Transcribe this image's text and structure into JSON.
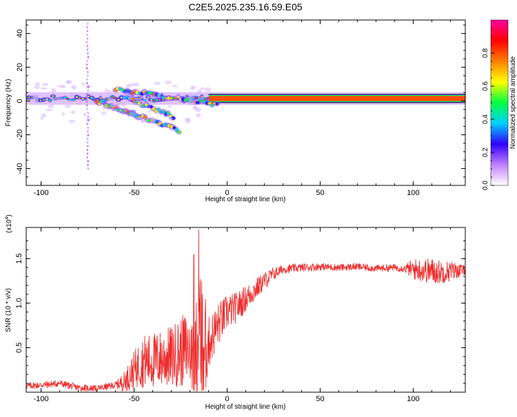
{
  "title": "C2E5.2025.235.16.59.E05",
  "chart_data": [
    {
      "type": "heatmap",
      "name": "spectrogram",
      "xlabel": "Height of straight line (km)",
      "ylabel": "Frequency (Hz)",
      "xlim": [
        -108,
        128
      ],
      "ylim": [
        -50,
        48
      ],
      "xticks": [
        -100,
        -50,
        0,
        50,
        100
      ],
      "yticks": [
        -40,
        -20,
        0,
        20,
        40
      ],
      "colorbar": {
        "label": "Normalized spectral amplitude",
        "range": [
          0,
          1
        ],
        "ticks": [
          0.0,
          0.2,
          0.4,
          0.6,
          0.8
        ],
        "colors": [
          "#ffffff",
          "#c080ff",
          "#3000ff",
          "#00d0ff",
          "#00ff40",
          "#ffff00",
          "#ff8000",
          "#ff0000",
          "#ff00a0"
        ]
      },
      "band": {
        "freq_center_hz": 1.5,
        "freq_half_width_hz": 2.5,
        "x_range": [
          -108,
          128
        ]
      },
      "curves": [
        {
          "from_x": -60,
          "to_x": -5,
          "start_freq": 7,
          "end_freq": -2
        },
        {
          "from_x": -70,
          "to_x": -25,
          "start_freq": 0,
          "end_freq": -18
        },
        {
          "from_x": -55,
          "to_x": -28,
          "start_freq": 3,
          "end_freq": -10
        }
      ],
      "spike": {
        "x": -75,
        "freq_min": -40,
        "freq_max": 46
      }
    },
    {
      "type": "line",
      "name": "snr",
      "xlabel": "Height of straight line (km)",
      "ylabel": "SNR (10 * v/v)",
      "multiplier_label": "(x10",
      "multiplier_exp": "4",
      "xlim": [
        -108,
        128
      ],
      "ylim": [
        0,
        1.85
      ],
      "xticks": [
        -100,
        -50,
        0,
        50,
        100
      ],
      "yticks": [
        0.5,
        1.0,
        1.5
      ],
      "color": "#ee2c2c",
      "envelope": {
        "x": [
          -108,
          -100,
          -90,
          -80,
          -70,
          -60,
          -55,
          -50,
          -45,
          -40,
          -35,
          -30,
          -25,
          -20,
          -15,
          -12,
          -10,
          -5,
          0,
          5,
          10,
          15,
          20,
          25,
          30,
          40,
          50,
          60,
          70,
          80,
          90,
          100,
          105,
          110,
          115,
          120,
          125,
          128
        ],
        "y": [
          0.07,
          0.08,
          0.1,
          0.05,
          0.04,
          0.08,
          0.12,
          0.25,
          0.35,
          0.35,
          0.38,
          0.4,
          0.45,
          0.5,
          0.6,
          0.5,
          0.55,
          0.75,
          0.9,
          0.95,
          1.05,
          1.15,
          1.25,
          1.33,
          1.38,
          1.4,
          1.41,
          1.4,
          1.41,
          1.39,
          1.4,
          1.38,
          1.37,
          1.36,
          1.35,
          1.36,
          1.37,
          1.37
        ]
      },
      "noise": {
        "x": [
          -108,
          -60,
          -55,
          -45,
          -30,
          -20,
          -13,
          -10,
          0,
          20,
          30,
          60,
          95,
          100,
          110,
          120,
          128
        ],
        "amp": [
          0.04,
          0.04,
          0.12,
          0.3,
          0.35,
          0.45,
          0.8,
          0.3,
          0.2,
          0.1,
          0.05,
          0.04,
          0.04,
          0.12,
          0.15,
          0.12,
          0.05
        ]
      }
    }
  ]
}
